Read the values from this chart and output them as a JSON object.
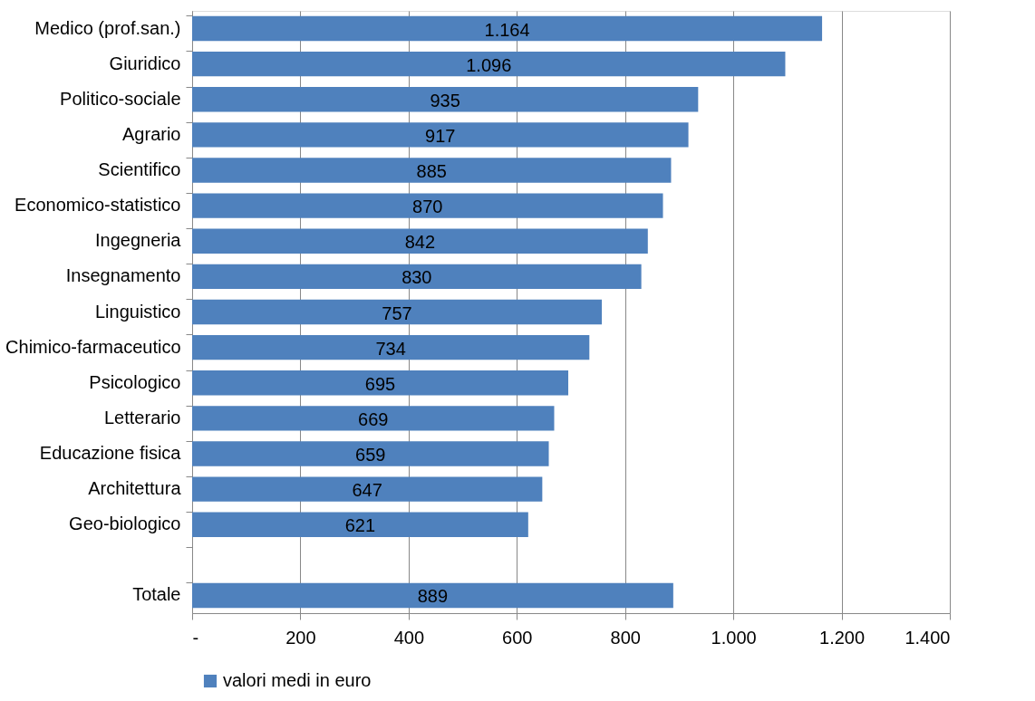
{
  "chart_data": {
    "type": "bar",
    "orientation": "horizontal",
    "categories": [
      "Medico (prof.san.)",
      "Giuridico",
      "Politico-sociale",
      "Agrario",
      "Scientifico",
      "Economico-statistico",
      "Ingegneria",
      "Insegnamento",
      "Linguistico",
      "Chimico-farmaceutico",
      "Psicologico",
      "Letterario",
      "Educazione fisica",
      "Architettura",
      "Geo-biologico",
      null,
      "Totale"
    ],
    "series": [
      {
        "name": "valori medi in euro",
        "color": "#4f81bd",
        "values": [
          1164,
          1096,
          935,
          917,
          885,
          870,
          842,
          830,
          757,
          734,
          695,
          669,
          659,
          647,
          621,
          null,
          889
        ],
        "value_labels": [
          "1.164",
          "1.096",
          "935",
          "917",
          "885",
          "870",
          "842",
          "830",
          "757",
          "734",
          "695",
          "669",
          "659",
          "647",
          "621",
          null,
          "889"
        ]
      }
    ],
    "xlim": [
      0,
      1400
    ],
    "xticks": [
      {
        "value": 0,
        "label": "-"
      },
      200,
      400,
      600,
      800,
      {
        "value": 1000,
        "label": "1.000"
      },
      {
        "value": 1200,
        "label": "1.200"
      },
      {
        "value": 1400,
        "label": "1.400"
      }
    ],
    "grid": "x",
    "legend": "bottom"
  }
}
